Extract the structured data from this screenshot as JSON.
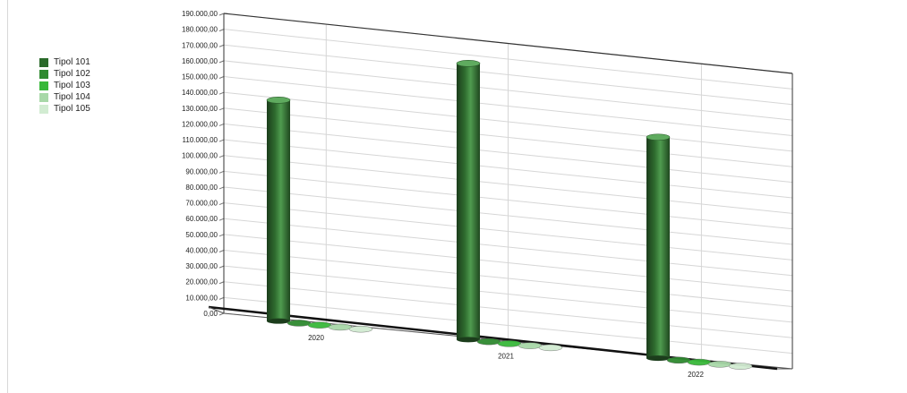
{
  "chart_data": {
    "type": "bar",
    "categories": [
      "2020",
      "2021",
      "2022"
    ],
    "series": [
      {
        "name": "Tipol 101",
        "values": [
          140000,
          175000,
          140000
        ]
      },
      {
        "name": "Tipol 102",
        "values": [
          0,
          0,
          0
        ]
      },
      {
        "name": "Tipol 103",
        "values": [
          0,
          0,
          0
        ]
      },
      {
        "name": "Tipol 104",
        "values": [
          0,
          0,
          0
        ]
      },
      {
        "name": "Tipol 105",
        "values": [
          0,
          0,
          0
        ]
      }
    ],
    "series_colors": [
      "#2a6a2a",
      "#2f8a30",
      "#38b83a",
      "#a8d8a8",
      "#d2ecd2"
    ],
    "yticks": [
      "0,00",
      "10.000,00",
      "20.000,00",
      "30.000,00",
      "40.000,00",
      "50.000,00",
      "60.000,00",
      "70.000,00",
      "80.000,00",
      "90.000,00",
      "100.000,00",
      "110.000,00",
      "120.000,00",
      "130.000,00",
      "140.000,00",
      "150.000,00",
      "160.000,00",
      "170.000,00",
      "180.000,00",
      "190.000,00"
    ],
    "ylim": [
      0,
      190000
    ],
    "title": "",
    "xlabel": "",
    "ylabel": "",
    "grid": true,
    "legend_position": "left",
    "style": "3d-cylinder"
  }
}
